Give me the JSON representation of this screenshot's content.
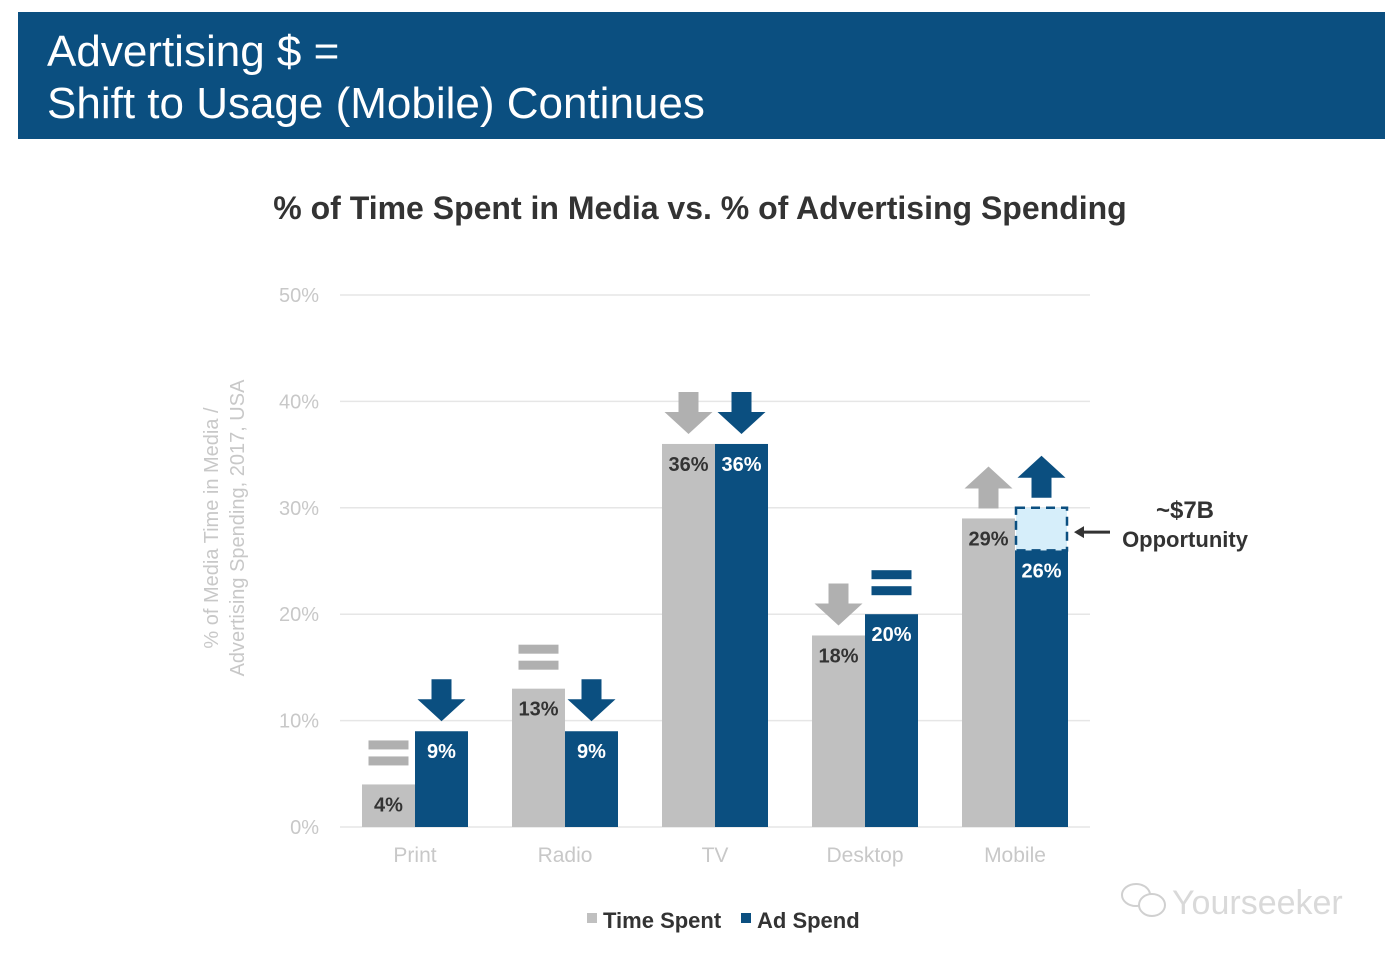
{
  "header": {
    "title_line1": "Advertising $ =",
    "title_line2": "Shift to Usage (Mobile) Continues",
    "background": "#0b4f80"
  },
  "chart_data": {
    "type": "bar",
    "title": "% of Time Spent in Media vs. % of Advertising Spending",
    "ylabel_line1": "% of Media Time in Media /",
    "ylabel_line2": "Advertising Spending, 2017, USA",
    "xlabel": "",
    "ylim": [
      0,
      50
    ],
    "yticks": [
      "0%",
      "10%",
      "20%",
      "30%",
      "40%",
      "50%"
    ],
    "ytick_values": [
      0,
      10,
      20,
      30,
      40,
      50
    ],
    "grid": true,
    "legend_position": "bottom",
    "categories": [
      "Print",
      "Radio",
      "TV",
      "Desktop",
      "Mobile"
    ],
    "series": [
      {
        "name": "Time Spent",
        "color": "#c0c0c0",
        "values": [
          4,
          13,
          36,
          18,
          29
        ],
        "labels": [
          "4%",
          "13%",
          "36%",
          "18%",
          "29%"
        ],
        "trend": [
          "equal",
          "equal",
          "down",
          "down",
          "up"
        ]
      },
      {
        "name": "Ad Spend",
        "color": "#0b4f80",
        "values": [
          9,
          9,
          36,
          20,
          26
        ],
        "labels": [
          "9%",
          "9%",
          "36%",
          "20%",
          "26%"
        ],
        "trend": [
          "down",
          "down",
          "down",
          "equal",
          "up"
        ]
      }
    ],
    "annotation": {
      "category": "Mobile",
      "range": [
        26,
        30
      ],
      "line1": "~$7B",
      "line2": "Opportunity",
      "fill": "#d6eefa"
    }
  },
  "watermark": {
    "text": "Yourseeker",
    "icon": "wechat-icon"
  }
}
